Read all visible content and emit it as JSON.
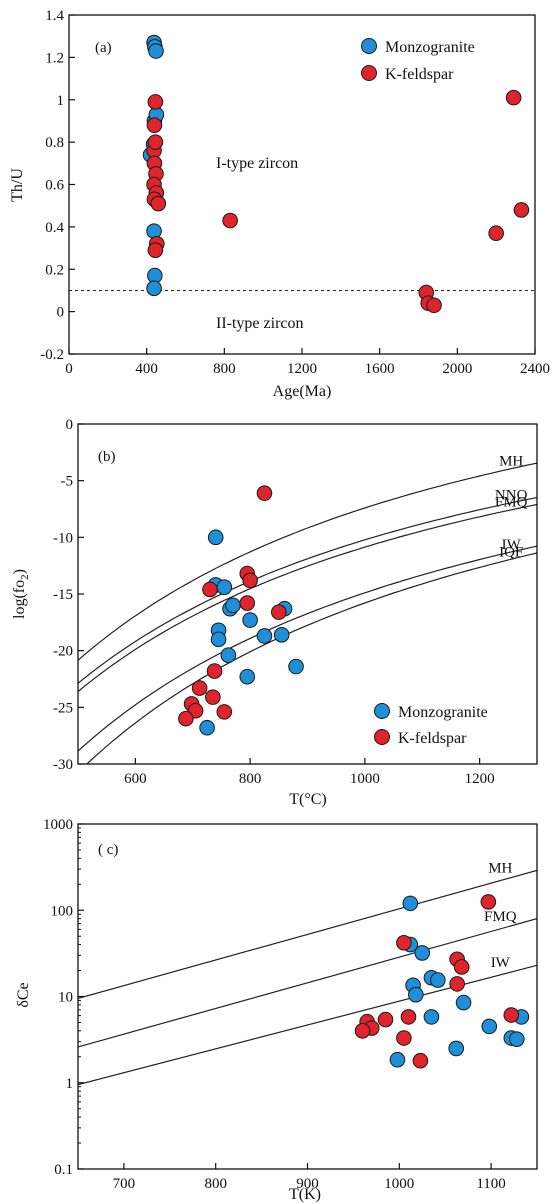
{
  "colors": {
    "monzogranite": "#1e8fd8",
    "k_feldspar": "#e0242b",
    "line": "#222222",
    "edge": "#1a1a1a"
  },
  "chart_data": [
    {
      "id": "a",
      "type": "scatter",
      "panel_label": "(a)",
      "xlabel": "Age(Ma)",
      "ylabel": "Th/U",
      "xlim": [
        0,
        2400
      ],
      "ylim": [
        -0.2,
        1.4
      ],
      "xticks": [
        0,
        400,
        800,
        1200,
        1600,
        2000,
        2400
      ],
      "yticks": [
        -0.2,
        0,
        0.2,
        0.4,
        0.6,
        0.8,
        1,
        1.2,
        1.4
      ],
      "ytick_labels": [
        "-0.2",
        "0",
        "0.2",
        "0.4",
        "0.6",
        "0.8",
        "1",
        "1.2",
        "1.4"
      ],
      "legend": {
        "position": "top-right",
        "entries": [
          "Monzogranite",
          "K-feldspar"
        ]
      },
      "annotations": [
        {
          "text": "I-type zircon",
          "x": 1000,
          "y": 0.62
        },
        {
          "text": "II-type zircon",
          "x": 1000,
          "y": -0.05
        }
      ],
      "reference_lines": [
        {
          "style": "dashed",
          "y": 0.1
        }
      ],
      "series": [
        {
          "name": "Monzogranite",
          "color_key": "monzogranite",
          "points": [
            [
              438,
              1.27
            ],
            [
              442,
              1.25
            ],
            [
              448,
              1.23
            ],
            [
              440,
              0.9
            ],
            [
              450,
              0.93
            ],
            [
              420,
              0.74
            ],
            [
              436,
              0.79
            ],
            [
              438,
              0.38
            ],
            [
              442,
              0.17
            ],
            [
              438,
              0.11
            ]
          ]
        },
        {
          "name": "K-feldspar",
          "color_key": "k_feldspar",
          "points": [
            [
              445,
              0.99
            ],
            [
              440,
              0.88
            ],
            [
              438,
              0.76
            ],
            [
              445,
              0.8
            ],
            [
              440,
              0.7
            ],
            [
              448,
              0.65
            ],
            [
              438,
              0.6
            ],
            [
              450,
              0.56
            ],
            [
              440,
              0.53
            ],
            [
              460,
              0.51
            ],
            [
              452,
              0.32
            ],
            [
              445,
              0.29
            ],
            [
              830,
              0.43
            ],
            [
              1840,
              0.09
            ],
            [
              1850,
              0.04
            ],
            [
              1880,
              0.03
            ],
            [
              2200,
              0.37
            ],
            [
              2290,
              1.01
            ],
            [
              2330,
              0.48
            ]
          ]
        }
      ]
    },
    {
      "id": "b",
      "type": "scatter",
      "panel_label": "(b)",
      "xlabel": "T(°C)",
      "ylabel_main": "log(fo",
      "ylabel_sub": "2",
      "ylabel_end": ")",
      "xlim": [
        500,
        1300
      ],
      "ylim": [
        -30,
        0
      ],
      "xticks": [
        600,
        800,
        1000,
        1200
      ],
      "yticks": [
        -30,
        -25,
        -20,
        -15,
        -10,
        -5,
        0
      ],
      "ytick_labels": [
        "-30",
        "-25",
        "-20",
        "-15",
        "-10",
        "-5",
        "0"
      ],
      "legend": {
        "position": "bottom-right",
        "entries": [
          "Monzogranite",
          "K-feldspar"
        ]
      },
      "buffers": [
        {
          "label": "MH",
          "A": 26455,
          "B": 13.37
        },
        {
          "label": "NNO",
          "A": 24930,
          "B": 9.36
        },
        {
          "label": "FMQ",
          "A": 25096,
          "B": 8.85
        },
        {
          "label": "IW",
          "A": 27489,
          "B": 6.7
        },
        {
          "label": "IQF",
          "A": 29435,
          "B": 7.33
        }
      ],
      "series": [
        {
          "name": "Monzogranite",
          "color_key": "monzogranite",
          "points": [
            [
              740,
              -10.0
            ],
            [
              740,
              -14.2
            ],
            [
              755,
              -14.4
            ],
            [
              745,
              -18.2
            ],
            [
              745,
              -19.0
            ],
            [
              765,
              -16.3
            ],
            [
              770,
              -16.0
            ],
            [
              800,
              -17.3
            ],
            [
              762,
              -20.4
            ],
            [
              825,
              -18.7
            ],
            [
              855,
              -18.6
            ],
            [
              860,
              -16.3
            ],
            [
              795,
              -22.3
            ],
            [
              880,
              -21.4
            ],
            [
              725,
              -26.8
            ]
          ]
        },
        {
          "name": "K-feldspar",
          "color_key": "k_feldspar",
          "points": [
            [
              825,
              -6.1
            ],
            [
              730,
              -14.6
            ],
            [
              795,
              -13.2
            ],
            [
              800,
              -13.8
            ],
            [
              795,
              -15.8
            ],
            [
              850,
              -16.6
            ],
            [
              738,
              -21.8
            ],
            [
              712,
              -23.3
            ],
            [
              735,
              -24.1
            ],
            [
              698,
              -24.7
            ],
            [
              705,
              -25.3
            ],
            [
              755,
              -25.4
            ],
            [
              688,
              -26.0
            ]
          ]
        }
      ]
    },
    {
      "id": "c",
      "type": "scatter",
      "panel_label": "( c)",
      "xlabel": "T(K)",
      "ylabel": "δCe",
      "yscale": "log",
      "xlim": [
        650,
        1150
      ],
      "ylim": [
        0.1,
        1000
      ],
      "xticks": [
        700,
        800,
        900,
        1000,
        1100
      ],
      "yticks": [
        0.1,
        1,
        10,
        100,
        1000
      ],
      "ytick_labels": [
        "0.1",
        "1",
        "10",
        "100",
        "1000"
      ],
      "buffers": [
        {
          "label": "MH",
          "y_at_650": 9.5,
          "y_at_1150": 290
        },
        {
          "label": "FMQ",
          "y_at_650": 2.6,
          "y_at_1150": 80
        },
        {
          "label": "IW",
          "y_at_650": 0.95,
          "y_at_1150": 23
        }
      ],
      "series": [
        {
          "name": "Monzogranite",
          "color_key": "monzogranite",
          "points": [
            [
              1012,
              120
            ],
            [
              1012,
              40
            ],
            [
              1025,
              32
            ],
            [
              1015,
              13.5
            ],
            [
              1018,
              10.5
            ],
            [
              1035,
              16.5
            ],
            [
              1042,
              15.5
            ],
            [
              1070,
              8.5
            ],
            [
              1035,
              5.8
            ],
            [
              998,
              1.85
            ],
            [
              1062,
              2.5
            ],
            [
              1098,
              4.5
            ],
            [
              1122,
              3.3
            ],
            [
              1128,
              3.2
            ],
            [
              1133,
              5.8
            ]
          ]
        },
        {
          "name": "K-feldspar",
          "color_key": "k_feldspar",
          "points": [
            [
              1097,
              125
            ],
            [
              1005,
              42
            ],
            [
              1063,
              27
            ],
            [
              1068,
              22
            ],
            [
              1063,
              14
            ],
            [
              1010,
              5.8
            ],
            [
              1122,
              6.1
            ],
            [
              985,
              5.4
            ],
            [
              965,
              5.1
            ],
            [
              970,
              4.3
            ],
            [
              960,
              4.0
            ],
            [
              1005,
              3.3
            ],
            [
              1023,
              1.8
            ]
          ]
        }
      ]
    }
  ]
}
